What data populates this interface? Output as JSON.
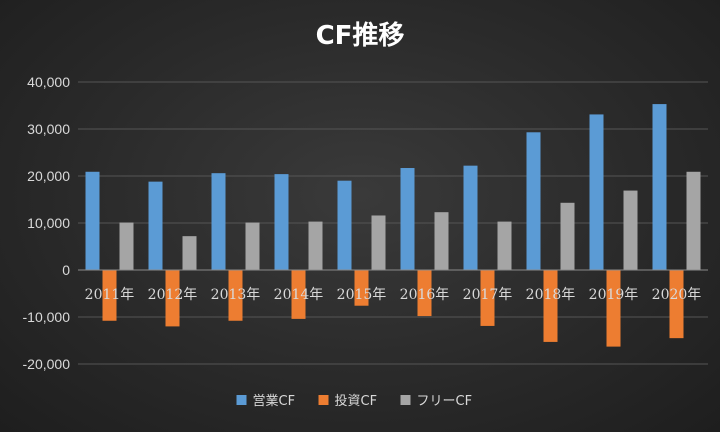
{
  "chart_data": {
    "type": "bar",
    "title": "CF推移",
    "categories": [
      "2011年",
      "2012年",
      "2013年",
      "2014年",
      "2015年",
      "2016年",
      "2017年",
      "2018年",
      "2019年",
      "2020年"
    ],
    "series": [
      {
        "name": "営業CF",
        "color": "#5b9bd5",
        "values": [
          20900,
          18800,
          20600,
          20400,
          19000,
          21700,
          22200,
          29300,
          33100,
          35300
        ]
      },
      {
        "name": "投資CF",
        "color": "#ed7d31",
        "values": [
          -10800,
          -12000,
          -10800,
          -10400,
          -7600,
          -9800,
          -11900,
          -15300,
          -16300,
          -14500
        ]
      },
      {
        "name": "フリーCF",
        "color": "#a5a5a5",
        "values": [
          10100,
          7200,
          10100,
          10300,
          11600,
          12300,
          10300,
          14300,
          16900,
          20900
        ]
      }
    ],
    "yticks": [
      "40,000",
      "30,000",
      "20,000",
      "10,000",
      "0",
      "-10,000",
      "-20,000"
    ],
    "ylim": [
      -20000,
      40000
    ],
    "grid": true,
    "legend": "bottom"
  }
}
